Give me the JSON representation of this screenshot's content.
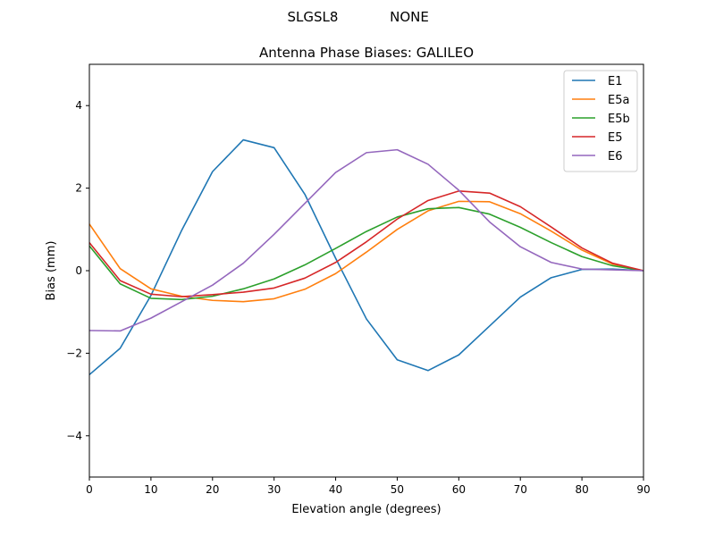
{
  "chart_data": {
    "type": "line",
    "suptitle_left": "SLGSL8",
    "suptitle_right": "NONE",
    "title": "Antenna Phase Biases: GALILEO",
    "xlabel": "Elevation angle (degrees)",
    "ylabel": "Bias (mm)",
    "xlim": [
      0,
      90
    ],
    "ylim": [
      -5,
      5
    ],
    "xticks": [
      0,
      10,
      20,
      30,
      40,
      50,
      60,
      70,
      80,
      90
    ],
    "yticks": [
      -4,
      -2,
      0,
      2,
      4
    ],
    "ytick_labels": [
      "−4",
      "−2",
      "0",
      "2",
      "4"
    ],
    "grid": false,
    "legend_position": "top-right",
    "x": [
      0,
      5,
      10,
      15,
      20,
      25,
      30,
      35,
      40,
      45,
      50,
      55,
      60,
      65,
      70,
      75,
      80,
      85,
      90
    ],
    "series": [
      {
        "name": "E1",
        "color": "#1f77b4",
        "values": [
          -2.52,
          -1.88,
          -0.6,
          0.98,
          2.4,
          3.17,
          2.98,
          1.85,
          0.3,
          -1.17,
          -2.16,
          -2.42,
          -2.04,
          -1.34,
          -0.64,
          -0.17,
          0.03,
          0.04,
          0.0
        ]
      },
      {
        "name": "E5a",
        "color": "#ff7f0e",
        "values": [
          1.13,
          0.05,
          -0.44,
          -0.62,
          -0.72,
          -0.75,
          -0.68,
          -0.45,
          -0.07,
          0.45,
          1.0,
          1.45,
          1.68,
          1.67,
          1.38,
          0.96,
          0.5,
          0.16,
          0.0
        ]
      },
      {
        "name": "E5b",
        "color": "#2ca02c",
        "values": [
          0.6,
          -0.32,
          -0.67,
          -0.7,
          -0.62,
          -0.44,
          -0.2,
          0.14,
          0.54,
          0.95,
          1.3,
          1.5,
          1.53,
          1.37,
          1.05,
          0.68,
          0.34,
          0.12,
          0.0
        ]
      },
      {
        "name": "E5",
        "color": "#d62728",
        "values": [
          0.68,
          -0.24,
          -0.57,
          -0.63,
          -0.58,
          -0.52,
          -0.42,
          -0.18,
          0.2,
          0.7,
          1.25,
          1.7,
          1.93,
          1.88,
          1.55,
          1.06,
          0.55,
          0.18,
          0.0
        ]
      },
      {
        "name": "E6",
        "color": "#9467bd",
        "values": [
          -1.45,
          -1.46,
          -1.15,
          -0.75,
          -0.35,
          0.18,
          0.88,
          1.63,
          2.38,
          2.86,
          2.93,
          2.58,
          1.95,
          1.18,
          0.58,
          0.2,
          0.04,
          0.02,
          0.0
        ]
      }
    ]
  }
}
